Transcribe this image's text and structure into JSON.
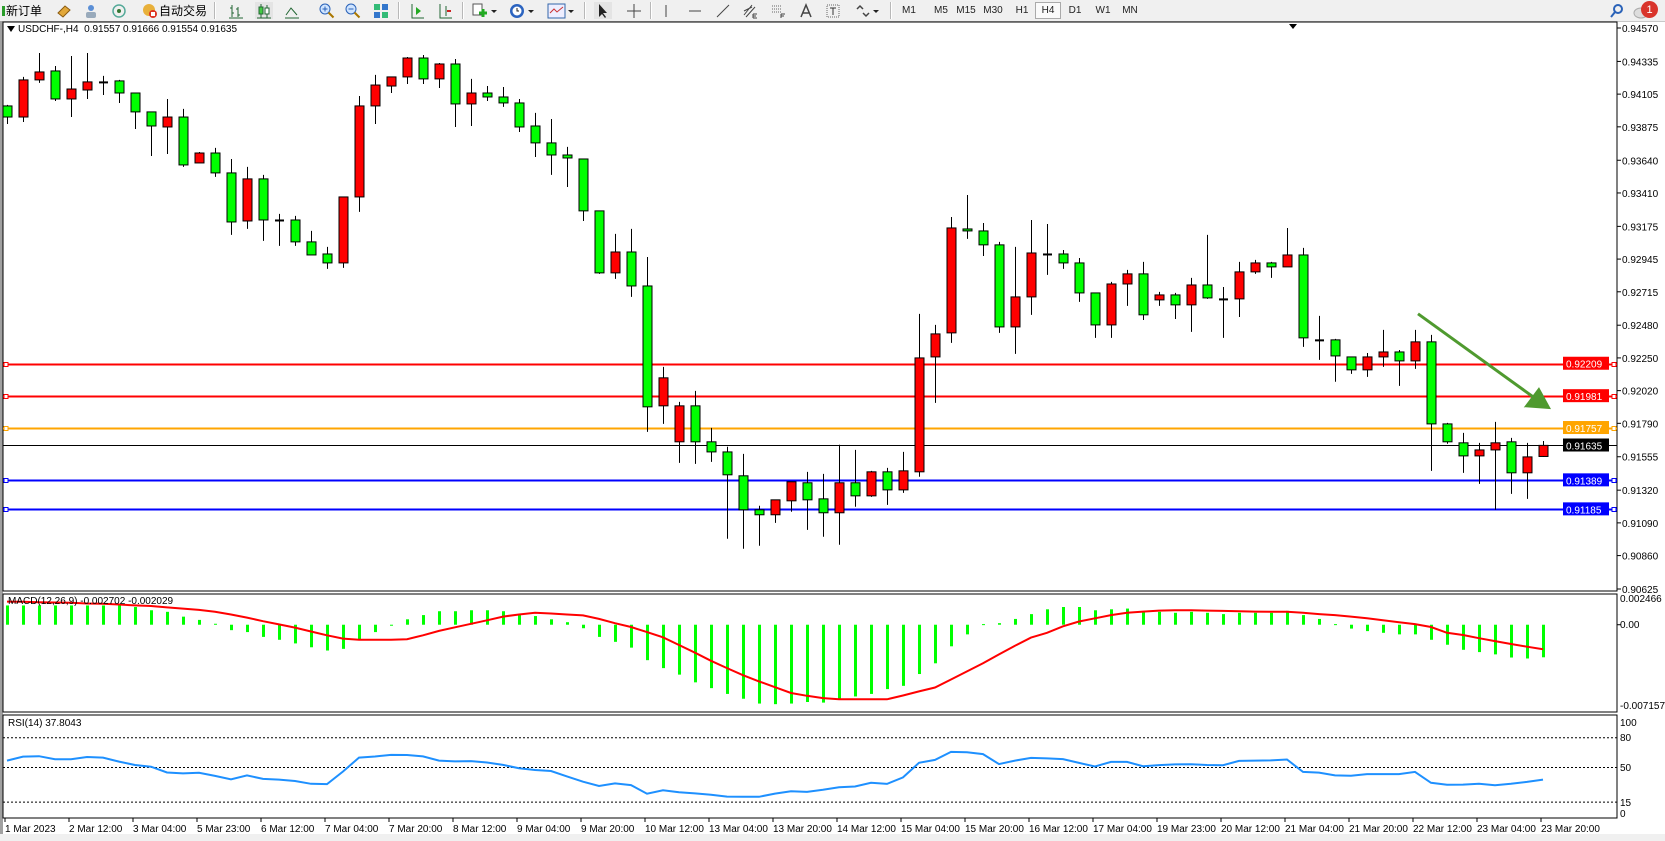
{
  "toolbar": {
    "new_order_label": "新订单",
    "auto_trading_label": "自动交易",
    "icons": [
      "new-order-icon",
      "market-watch-icon",
      "navigator-icon",
      "signals-icon",
      "auto-trading-icon",
      "bar-chart-icon",
      "candlestick-icon",
      "line-chart-icon",
      "zoom-in-icon",
      "zoom-out-icon",
      "tile-windows-icon",
      "chart-shift-icon",
      "auto-scroll-icon",
      "new-chart-icon",
      "periods-icon",
      "templates-icon",
      "cursor-icon",
      "crosshair-icon",
      "vertical-line-icon",
      "horizontal-line-icon",
      "trendline-icon",
      "fibonacci-expansion-icon",
      "fibonacci-fan-icon",
      "text-icon",
      "text-label-icon",
      "arrows-icon",
      "search-icon",
      "notifications-icon"
    ],
    "timeframes": [
      "M1",
      "M5",
      "M15",
      "M30",
      "H1",
      "H4",
      "D1",
      "W1",
      "MN"
    ],
    "active_timeframe": "H4",
    "notification_count": "1"
  },
  "chart_header": "USDCHF-,H4  0.91557 0.91666 0.91554 0.91635",
  "macd_header": "MACD(12,26,9) -0.002702 -0.002029",
  "rsi_header": "RSI(14) 37.8043",
  "colors": {
    "bull": "#ff0000",
    "bear": "#00ff00",
    "macd_hist": "#00ff00",
    "macd_signal": "#ff0000",
    "rsi": "#1e90ff",
    "arrow": "#4f9a2f"
  },
  "chart_data": [
    {
      "type": "candlestick",
      "symbol": "USDCHF-",
      "timeframe": "H4",
      "ylim": [
        0.90625,
        0.9457
      ],
      "y_tick_labels": [
        "0.94570",
        "0.94335",
        "0.94105",
        "0.93875",
        "0.93640",
        "0.93410",
        "0.93175",
        "0.92945",
        "0.92715",
        "0.92480",
        "0.92250",
        "0.92020",
        "0.91790",
        "0.91555",
        "0.91320",
        "0.91090",
        "0.90860",
        "0.90625"
      ],
      "x_tick_labels": [
        "1 Mar 2023",
        "2 Mar 12:00",
        "3 Mar 04:00",
        "5 Mar 23:00",
        "6 Mar 12:00",
        "7 Mar 04:00",
        "7 Mar 20:00",
        "8 Mar 12:00",
        "9 Mar 04:00",
        "9 Mar 20:00",
        "10 Mar 12:00",
        "13 Mar 04:00",
        "13 Mar 20:00",
        "14 Mar 12:00",
        "15 Mar 04:00",
        "15 Mar 20:00",
        "16 Mar 12:00",
        "17 Mar 04:00",
        "19 Mar 23:00",
        "20 Mar 12:00",
        "21 Mar 04:00",
        "21 Mar 20:00",
        "22 Mar 12:00",
        "23 Mar 04:00",
        "23 Mar 20:00"
      ],
      "ohlc": [
        [
          0.94022,
          0.94029,
          0.93895,
          0.93944
        ],
        [
          0.93944,
          0.94226,
          0.93909,
          0.94205
        ],
        [
          0.94205,
          0.94394,
          0.94184,
          0.94261
        ],
        [
          0.94268,
          0.94303,
          0.94057,
          0.94071
        ],
        [
          0.94071,
          0.94373,
          0.93944,
          0.94141
        ],
        [
          0.94134,
          0.94394,
          0.94071,
          0.94191
        ],
        [
          0.94191,
          0.94233,
          0.94099,
          0.94191
        ],
        [
          0.94198,
          0.94205,
          0.94043,
          0.94113
        ],
        [
          0.94113,
          0.94113,
          0.9386,
          0.9398
        ],
        [
          0.9398,
          0.9398,
          0.9367,
          0.93881
        ],
        [
          0.93874,
          0.94071,
          0.93684,
          0.93944
        ],
        [
          0.93944,
          0.94001,
          0.93593,
          0.93607
        ],
        [
          0.93621,
          0.93698,
          0.93621,
          0.93691
        ],
        [
          0.93691,
          0.93727,
          0.93523,
          0.93551
        ],
        [
          0.93551,
          0.93649,
          0.93115,
          0.93206
        ],
        [
          0.93213,
          0.93593,
          0.93157,
          0.93509
        ],
        [
          0.93509,
          0.93537,
          0.93073,
          0.9322
        ],
        [
          0.9322,
          0.93263,
          0.93038,
          0.9322
        ],
        [
          0.9322,
          0.93249,
          0.93038,
          0.93066
        ],
        [
          0.93066,
          0.93143,
          0.92974,
          0.92974
        ],
        [
          0.92981,
          0.93031,
          0.92876,
          0.92918
        ],
        [
          0.92918,
          0.93382,
          0.92883,
          0.93382
        ],
        [
          0.93382,
          0.94092,
          0.93277,
          0.94022
        ],
        [
          0.94022,
          0.9424,
          0.93895,
          0.94169
        ],
        [
          0.94162,
          0.94226,
          0.94113,
          0.94226
        ],
        [
          0.94226,
          0.94366,
          0.94176,
          0.94359
        ],
        [
          0.94359,
          0.9438,
          0.94176,
          0.94212
        ],
        [
          0.94212,
          0.94324,
          0.94148,
          0.94317
        ],
        [
          0.94317,
          0.94352,
          0.93874,
          0.94036
        ],
        [
          0.94036,
          0.94212,
          0.93881,
          0.94113
        ],
        [
          0.94113,
          0.94162,
          0.94057,
          0.94085
        ],
        [
          0.94085,
          0.94155,
          0.94015,
          0.94043
        ],
        [
          0.94043,
          0.94071,
          0.93839,
          0.93874
        ],
        [
          0.93881,
          0.93973,
          0.93663,
          0.93762
        ],
        [
          0.93762,
          0.9393,
          0.93537,
          0.93677
        ],
        [
          0.93677,
          0.93734,
          0.93452,
          0.93656
        ],
        [
          0.93649,
          0.93649,
          0.93213,
          0.93284
        ],
        [
          0.93284,
          0.93284,
          0.92841,
          0.92848
        ],
        [
          0.92848,
          0.93122,
          0.92806,
          0.92995
        ],
        [
          0.92995,
          0.93157,
          0.92679,
          0.92756
        ],
        [
          0.92756,
          0.9296,
          0.9173,
          0.91906
        ],
        [
          0.91913,
          0.92187,
          0.91786,
          0.9211
        ],
        [
          0.9166,
          0.91941,
          0.91512,
          0.91913
        ],
        [
          0.91913,
          0.92018,
          0.91505,
          0.9166
        ],
        [
          0.9166,
          0.91758,
          0.91519,
          0.91589
        ],
        [
          0.91589,
          0.91625,
          0.90978,
          0.91428
        ],
        [
          0.91421,
          0.91575,
          0.90908,
          0.91182
        ],
        [
          0.91182,
          0.9121,
          0.90929,
          0.91147
        ],
        [
          0.91147,
          0.91252,
          0.9109,
          0.91252
        ],
        [
          0.91245,
          0.91379,
          0.91168,
          0.91379
        ],
        [
          0.91372,
          0.91449,
          0.91041,
          0.91252
        ],
        [
          0.91259,
          0.91435,
          0.90992,
          0.91161
        ],
        [
          0.91161,
          0.91639,
          0.90936,
          0.91372
        ],
        [
          0.91372,
          0.91603,
          0.91203,
          0.9128
        ],
        [
          0.9128,
          0.91456,
          0.91273,
          0.91449
        ],
        [
          0.91449,
          0.91477,
          0.91217,
          0.91322
        ],
        [
          0.91322,
          0.91589,
          0.91301,
          0.91456
        ],
        [
          0.91449,
          0.9256,
          0.91414,
          0.9225
        ],
        [
          0.92257,
          0.92482,
          0.91934,
          0.92419
        ],
        [
          0.92426,
          0.93241,
          0.92356,
          0.93164
        ],
        [
          0.93157,
          0.93396,
          0.93087,
          0.93143
        ],
        [
          0.93143,
          0.93199,
          0.92967,
          0.93045
        ],
        [
          0.93045,
          0.93066,
          0.92426,
          0.92468
        ],
        [
          0.92468,
          0.93031,
          0.92278,
          0.92679
        ],
        [
          0.92679,
          0.9322,
          0.92553,
          0.92988
        ],
        [
          0.92981,
          0.93192,
          0.92834,
          0.92981
        ],
        [
          0.92981,
          0.93009,
          0.92876,
          0.92918
        ],
        [
          0.92918,
          0.92953,
          0.92644,
          0.92707
        ],
        [
          0.92707,
          0.92707,
          0.92391,
          0.92482
        ],
        [
          0.92482,
          0.92785,
          0.92391,
          0.9277
        ],
        [
          0.9277,
          0.92869,
          0.92616,
          0.92841
        ],
        [
          0.92841,
          0.92925,
          0.92517,
          0.92553
        ],
        [
          0.92658,
          0.92714,
          0.92616,
          0.92693
        ],
        [
          0.92693,
          0.92707,
          0.92524,
          0.92623
        ],
        [
          0.92623,
          0.92813,
          0.92433,
          0.92763
        ],
        [
          0.92763,
          0.93115,
          0.92665,
          0.92672
        ],
        [
          0.92665,
          0.92749,
          0.92391,
          0.92665
        ],
        [
          0.92665,
          0.92925,
          0.92538,
          0.92855
        ],
        [
          0.92855,
          0.92939,
          0.92841,
          0.92918
        ],
        [
          0.92918,
          0.92925,
          0.92813,
          0.9289
        ],
        [
          0.9289,
          0.93164,
          0.9289,
          0.92974
        ],
        [
          0.92974,
          0.93024,
          0.92328,
          0.92391
        ],
        [
          0.92377,
          0.92546,
          0.92236,
          0.92377
        ],
        [
          0.92377,
          0.92384,
          0.92082,
          0.92264
        ],
        [
          0.92257,
          0.92257,
          0.92138,
          0.92166
        ],
        [
          0.92166,
          0.92285,
          0.92117,
          0.92257
        ],
        [
          0.92257,
          0.92447,
          0.92187,
          0.92292
        ],
        [
          0.92292,
          0.92306,
          0.92053,
          0.92229
        ],
        [
          0.92229,
          0.92447,
          0.92173,
          0.92363
        ],
        [
          0.92363,
          0.92412,
          0.91456,
          0.91786
        ],
        [
          0.91786,
          0.91793,
          0.91646,
          0.9166
        ],
        [
          0.91653,
          0.91723,
          0.91442,
          0.91561
        ],
        [
          0.91561,
          0.91653,
          0.91364,
          0.91603
        ],
        [
          0.91603,
          0.918,
          0.91182,
          0.91653
        ],
        [
          0.9166,
          0.91688,
          0.91294,
          0.91442
        ],
        [
          0.91442,
          0.91653,
          0.91259,
          0.91554
        ],
        [
          0.91557,
          0.91666,
          0.91554,
          0.91635
        ]
      ],
      "horizontal_lines": [
        {
          "price": "0.92209",
          "color": "#ff0000"
        },
        {
          "price": "0.91981",
          "color": "#ff0000"
        },
        {
          "price": "0.91757",
          "color": "#ffa500"
        },
        {
          "price": "0.91389",
          "color": "#0000ff"
        },
        {
          "price": "0.91185",
          "color": "#0000ff"
        }
      ],
      "current_price": "0.91635",
      "trend_arrow": {
        "from": {
          "candle": "22 Mar 04:00",
          "price": 0.9256
        },
        "to": {
          "candle": "24 Mar",
          "price": 0.9189
        },
        "direction": "down"
      }
    },
    {
      "type": "bar+line",
      "name": "MACD(12,26,9)",
      "ylim": [
        -0.007157,
        0.002466
      ],
      "y_tick_labels": [
        "0.002466",
        "0.00",
        "-0.007157"
      ],
      "histogram": [
        0.0016,
        0.0016,
        0.0016,
        0.0016,
        0.0016,
        0.0016,
        0.0016,
        0.0016,
        0.00147,
        0.0012,
        0.00107,
        0.00067,
        0.0004,
        8e-05,
        -0.00045,
        -0.00061,
        -0.00101,
        -0.00125,
        -0.00155,
        -0.00187,
        -0.00214,
        -0.002,
        -0.0012,
        -0.00061,
        0.0,
        0.00045,
        0.0008,
        0.00112,
        0.00112,
        0.0012,
        0.0012,
        0.00112,
        0.0008,
        0.00072,
        0.00045,
        0.00021,
        -0.00029,
        -0.00101,
        -0.00142,
        -0.0019,
        -0.00294,
        -0.0036,
        -0.00414,
        -0.00478,
        -0.00526,
        -0.00574,
        -0.00614,
        -0.00654,
        -0.00659,
        -0.00654,
        -0.00641,
        -0.00646,
        -0.00614,
        -0.00595,
        -0.00574,
        -0.00534,
        -0.00507,
        -0.00409,
        -0.0032,
        -0.00179,
        -0.0008,
        5e-05,
        0.00013,
        0.00048,
        0.00088,
        0.00128,
        0.00147,
        0.00147,
        0.0012,
        0.00128,
        0.00134,
        0.00107,
        0.00107,
        0.00099,
        0.00107,
        0.00099,
        0.00088,
        0.00099,
        0.00099,
        0.00099,
        0.00115,
        0.0008,
        0.00048,
        5e-05,
        -0.00032,
        -0.00053,
        -0.00067,
        -0.0008,
        -0.0008,
        -0.00125,
        -0.00166,
        -0.00208,
        -0.00227,
        -0.00246,
        -0.00272,
        -0.0028,
        -0.002702
      ],
      "signal": [
        0.00192,
        0.0019,
        0.00187,
        0.00184,
        0.00182,
        0.00176,
        0.00174,
        0.00168,
        0.0016,
        0.00155,
        0.00144,
        0.00134,
        0.00123,
        0.00107,
        0.00085,
        0.00059,
        0.00029,
        3e-05,
        -0.00024,
        -0.00056,
        -0.00088,
        -0.00115,
        -0.00125,
        -0.00125,
        -0.00125,
        -0.0012,
        -0.00088,
        -0.00051,
        -0.00021,
        8e-05,
        0.00037,
        0.00067,
        0.00085,
        0.00099,
        0.00093,
        0.00085,
        0.00077,
        0.00048,
        0.00013,
        -0.00019,
        -0.00061,
        -0.00104,
        -0.00168,
        -0.00232,
        -0.00299,
        -0.0036,
        -0.00419,
        -0.0047,
        -0.00518,
        -0.00566,
        -0.0059,
        -0.00609,
        -0.00619,
        -0.00619,
        -0.00619,
        -0.00619,
        -0.00587,
        -0.00553,
        -0.00521,
        -0.00454,
        -0.00387,
        -0.0032,
        -0.00246,
        -0.00174,
        -0.00107,
        -0.00067,
        -0.00013,
        0.00027,
        0.00053,
        0.0008,
        0.00099,
        0.00109,
        0.00117,
        0.0012,
        0.0012,
        0.00117,
        0.00115,
        0.00112,
        0.00109,
        0.00107,
        0.00107,
        0.00099,
        0.00088,
        0.0008,
        0.00067,
        0.00053,
        0.00037,
        0.00021,
        5e-05,
        -0.00019,
        -0.00067,
        -0.00085,
        -0.00112,
        -0.00136,
        -0.0016,
        -0.00182,
        -0.002029
      ]
    },
    {
      "type": "line",
      "name": "RSI(14)",
      "ylim": [
        0,
        100
      ],
      "y_tick_labels": [
        "100",
        "80",
        "50",
        "15",
        "0"
      ],
      "levels": [
        80,
        50,
        15
      ],
      "values": [
        57,
        61,
        61.4,
        58.4,
        58.4,
        60.6,
        60,
        56,
        52.5,
        50.8,
        45,
        44,
        44.6,
        41.5,
        38,
        42,
        38.5,
        37.8,
        36.4,
        33.5,
        33.2,
        46,
        60,
        61.1,
        62.7,
        62.6,
        61.2,
        57,
        56.2,
        56.5,
        55,
        52.6,
        49.3,
        47.5,
        46.5,
        41,
        35.7,
        31.3,
        33.9,
        32.2,
        23.5,
        27,
        25,
        23.8,
        22.4,
        20.6,
        20.4,
        20.4,
        23.6,
        26,
        25.4,
        27.5,
        30,
        30.8,
        34.5,
        33.4,
        40,
        54.7,
        57.7,
        65.8,
        65.4,
        63.5,
        53.4,
        57,
        59.7,
        59.2,
        58.5,
        54.6,
        51,
        55.7,
        55.7,
        51.3,
        52.4,
        53.1,
        53.2,
        52.5,
        52.3,
        56.7,
        57,
        57.2,
        58.1,
        45.6,
        44.8,
        42,
        41.6,
        43.3,
        43.3,
        43.3,
        45.6,
        34.5,
        32.6,
        32.7,
        33.5,
        32,
        33.5,
        35.5,
        37.8043
      ]
    }
  ]
}
